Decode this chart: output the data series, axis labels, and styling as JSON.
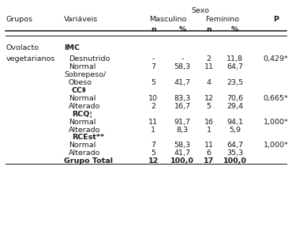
{
  "background_color": "#ffffff",
  "text_color": "#1a1a1a",
  "font_size": 6.8,
  "title": "Sexo",
  "col_x": {
    "grupos": 0.02,
    "variaveis": 0.22,
    "masc_n": 0.525,
    "masc_pct": 0.625,
    "fem_n": 0.715,
    "fem_pct": 0.805,
    "p": 0.945
  },
  "rows": [
    {
      "grupo": "Ovolacto",
      "grupo2": "vegetarianos",
      "variavel": "IMC",
      "bold_var": true,
      "indent": false,
      "masc_n": "",
      "masc_pct": "",
      "fem_n": "",
      "fem_pct": "",
      "p": ""
    },
    {
      "grupo": "",
      "grupo2": "",
      "variavel": "Desnutrido",
      "bold_var": false,
      "indent": true,
      "masc_n": "-",
      "masc_pct": "-",
      "fem_n": "2",
      "fem_pct": "11,8",
      "p": "0,429*"
    },
    {
      "grupo": "",
      "grupo2": "",
      "variavel": "Normal",
      "bold_var": false,
      "indent": true,
      "masc_n": "7",
      "masc_pct": "58,3",
      "fem_n": "11",
      "fem_pct": "64,7",
      "p": ""
    },
    {
      "grupo": "",
      "grupo2": "",
      "variavel": "Sobrepeso/",
      "bold_var": false,
      "indent": false,
      "masc_n": "",
      "masc_pct": "",
      "fem_n": "",
      "fem_pct": "",
      "p": ""
    },
    {
      "grupo": "",
      "grupo2": "",
      "variavel": "Obeso",
      "bold_var": false,
      "indent": true,
      "masc_n": "5",
      "masc_pct": "41,7",
      "fem_n": "4",
      "fem_pct": "23,5",
      "p": ""
    },
    {
      "grupo": "",
      "grupo2": "",
      "variavel": "CC‡",
      "bold_var": true,
      "indent": true,
      "masc_n": "",
      "masc_pct": "",
      "fem_n": "",
      "fem_pct": "",
      "p": ""
    },
    {
      "grupo": "",
      "grupo2": "",
      "variavel": "Normal",
      "bold_var": false,
      "indent": true,
      "masc_n": "10",
      "masc_pct": "83,3",
      "fem_n": "12",
      "fem_pct": "70,6",
      "p": "0,665*"
    },
    {
      "grupo": "",
      "grupo2": "",
      "variavel": "Alterado",
      "bold_var": false,
      "indent": true,
      "masc_n": "2",
      "masc_pct": "16,7",
      "fem_n": "5",
      "fem_pct": "29,4",
      "p": ""
    },
    {
      "grupo": "",
      "grupo2": "",
      "variavel": "RCQ¦",
      "bold_var": true,
      "indent": true,
      "masc_n": "",
      "masc_pct": "",
      "fem_n": "",
      "fem_pct": "",
      "p": ""
    },
    {
      "grupo": "",
      "grupo2": "",
      "variavel": "Normal",
      "bold_var": false,
      "indent": true,
      "masc_n": "11",
      "masc_pct": "91,7",
      "fem_n": "16",
      "fem_pct": "94,1",
      "p": "1,000*"
    },
    {
      "grupo": "",
      "grupo2": "",
      "variavel": "Alterado",
      "bold_var": false,
      "indent": true,
      "masc_n": "1",
      "masc_pct": "8,3",
      "fem_n": "1",
      "fem_pct": "5,9",
      "p": ""
    },
    {
      "grupo": "",
      "grupo2": "",
      "variavel": "RCEst**",
      "bold_var": true,
      "indent": true,
      "masc_n": "",
      "masc_pct": "",
      "fem_n": "",
      "fem_pct": "",
      "p": ""
    },
    {
      "grupo": "",
      "grupo2": "",
      "variavel": "Normal",
      "bold_var": false,
      "indent": true,
      "masc_n": "7",
      "masc_pct": "58,3",
      "fem_n": "11",
      "fem_pct": "64,7",
      "p": "1,000*"
    },
    {
      "grupo": "",
      "grupo2": "",
      "variavel": "Alterado",
      "bold_var": false,
      "indent": true,
      "masc_n": "5",
      "masc_pct": "41,7",
      "fem_n": "6",
      "fem_pct": "35,3",
      "p": ""
    },
    {
      "grupo": "",
      "grupo2": "",
      "variavel": "Grupo Total",
      "bold_var": true,
      "indent": false,
      "masc_n": "12",
      "masc_pct": "100,0",
      "fem_n": "17",
      "fem_pct": "100,0",
      "p": ""
    }
  ]
}
